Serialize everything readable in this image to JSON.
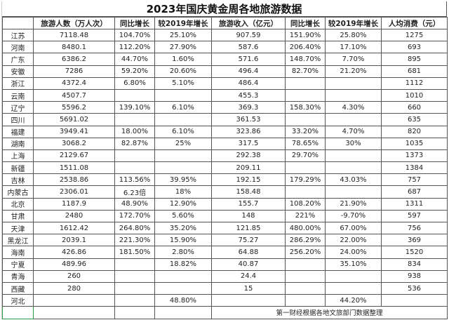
{
  "title": "2023年国庆黄金周各地旅游数据",
  "headers": [
    "",
    "旅游人数（万人次）",
    "同比增长",
    "较2019年增长",
    "旅游收入（亿元）",
    "同比增长",
    "较2019年增长",
    "人均消费（元）"
  ],
  "rows": [
    [
      "江苏",
      "7118.48",
      "104.70%",
      "25.10%",
      "907.59",
      "151.90%",
      "25.80%",
      "1275"
    ],
    [
      "河南",
      "8480.1",
      "112.20%",
      "27.90%",
      "587.6",
      "206.40%",
      "17.10%",
      "693"
    ],
    [
      "广东",
      "6386.2",
      "44.70%",
      "1.60%",
      "571.6",
      "148.70%",
      "7.70%",
      "895"
    ],
    [
      "安徽",
      "7286",
      "59.20%",
      "20.60%",
      "496.4",
      "82.70%",
      "21.20%",
      "681"
    ],
    [
      "浙江",
      "4372.4",
      "6.80%",
      "5.10%",
      "486.4",
      "",
      "",
      "1112"
    ],
    [
      "云南",
      "4507.7",
      "",
      "",
      "455.3",
      "",
      "",
      "1010"
    ],
    [
      "辽宁",
      "5596.2",
      "139.10%",
      "6.10%",
      "369.3",
      "158.30%",
      "4.30%",
      "660"
    ],
    [
      "四川",
      "5691.02",
      "",
      "",
      "361.53",
      "",
      "",
      "635"
    ],
    [
      "福建",
      "3949.41",
      "18.00%",
      "6.10%",
      "323.86",
      "33.20%",
      "4.70%",
      "820"
    ],
    [
      "湖南",
      "3068.2",
      "82.87%",
      "25%",
      "317.5",
      "78.65%",
      "30%",
      "1035"
    ],
    [
      "上海",
      "2129.67",
      "",
      "",
      "292.38",
      "29.70%",
      "",
      "1373"
    ],
    [
      "新疆",
      "1511.08",
      "",
      "",
      "209.11",
      "",
      "",
      "1384"
    ],
    [
      "吉林",
      "2538.86",
      "113.56%",
      "39.95%",
      "192.15",
      "179.29%",
      "43.03%",
      "757"
    ],
    [
      "内蒙古",
      "2306.01",
      "6.23倍",
      "18%",
      "158.48",
      "",
      "",
      "687"
    ],
    [
      "北京",
      "1187.9",
      "48.90%",
      "12.90%",
      "155.7",
      "108.20%",
      "21.90%",
      "1311"
    ],
    [
      "甘肃",
      "2480",
      "172.70%",
      "5.60%",
      "148",
      "221%",
      "-9.70%",
      "597"
    ],
    [
      "天津",
      "1612.42",
      "264.80%",
      "35.20%",
      "121.85",
      "480.00%",
      "67.00%",
      "756"
    ],
    [
      "黑龙江",
      "2039.1",
      "221.30%",
      "15.90%",
      "75.27",
      "286.29%",
      "22.00%",
      "369"
    ],
    [
      "海南",
      "426.86",
      "181.50%",
      "2.80%",
      "64.88",
      "256.20%",
      "24.00%",
      "1520"
    ],
    [
      "宁夏",
      "489.96",
      "",
      "18.82%",
      "40.87",
      "",
      "35.10%",
      "834"
    ],
    [
      "青海",
      "260",
      "",
      "",
      "24.4",
      "",
      "",
      "938"
    ],
    [
      "西藏",
      "280",
      "",
      "",
      "15",
      "",
      "",
      "536"
    ],
    [
      "河北",
      "",
      "",
      "48.80%",
      "",
      "",
      "44.20%",
      ""
    ]
  ],
  "source_note": "第一财经根据各地文旅部门数据整理"
}
